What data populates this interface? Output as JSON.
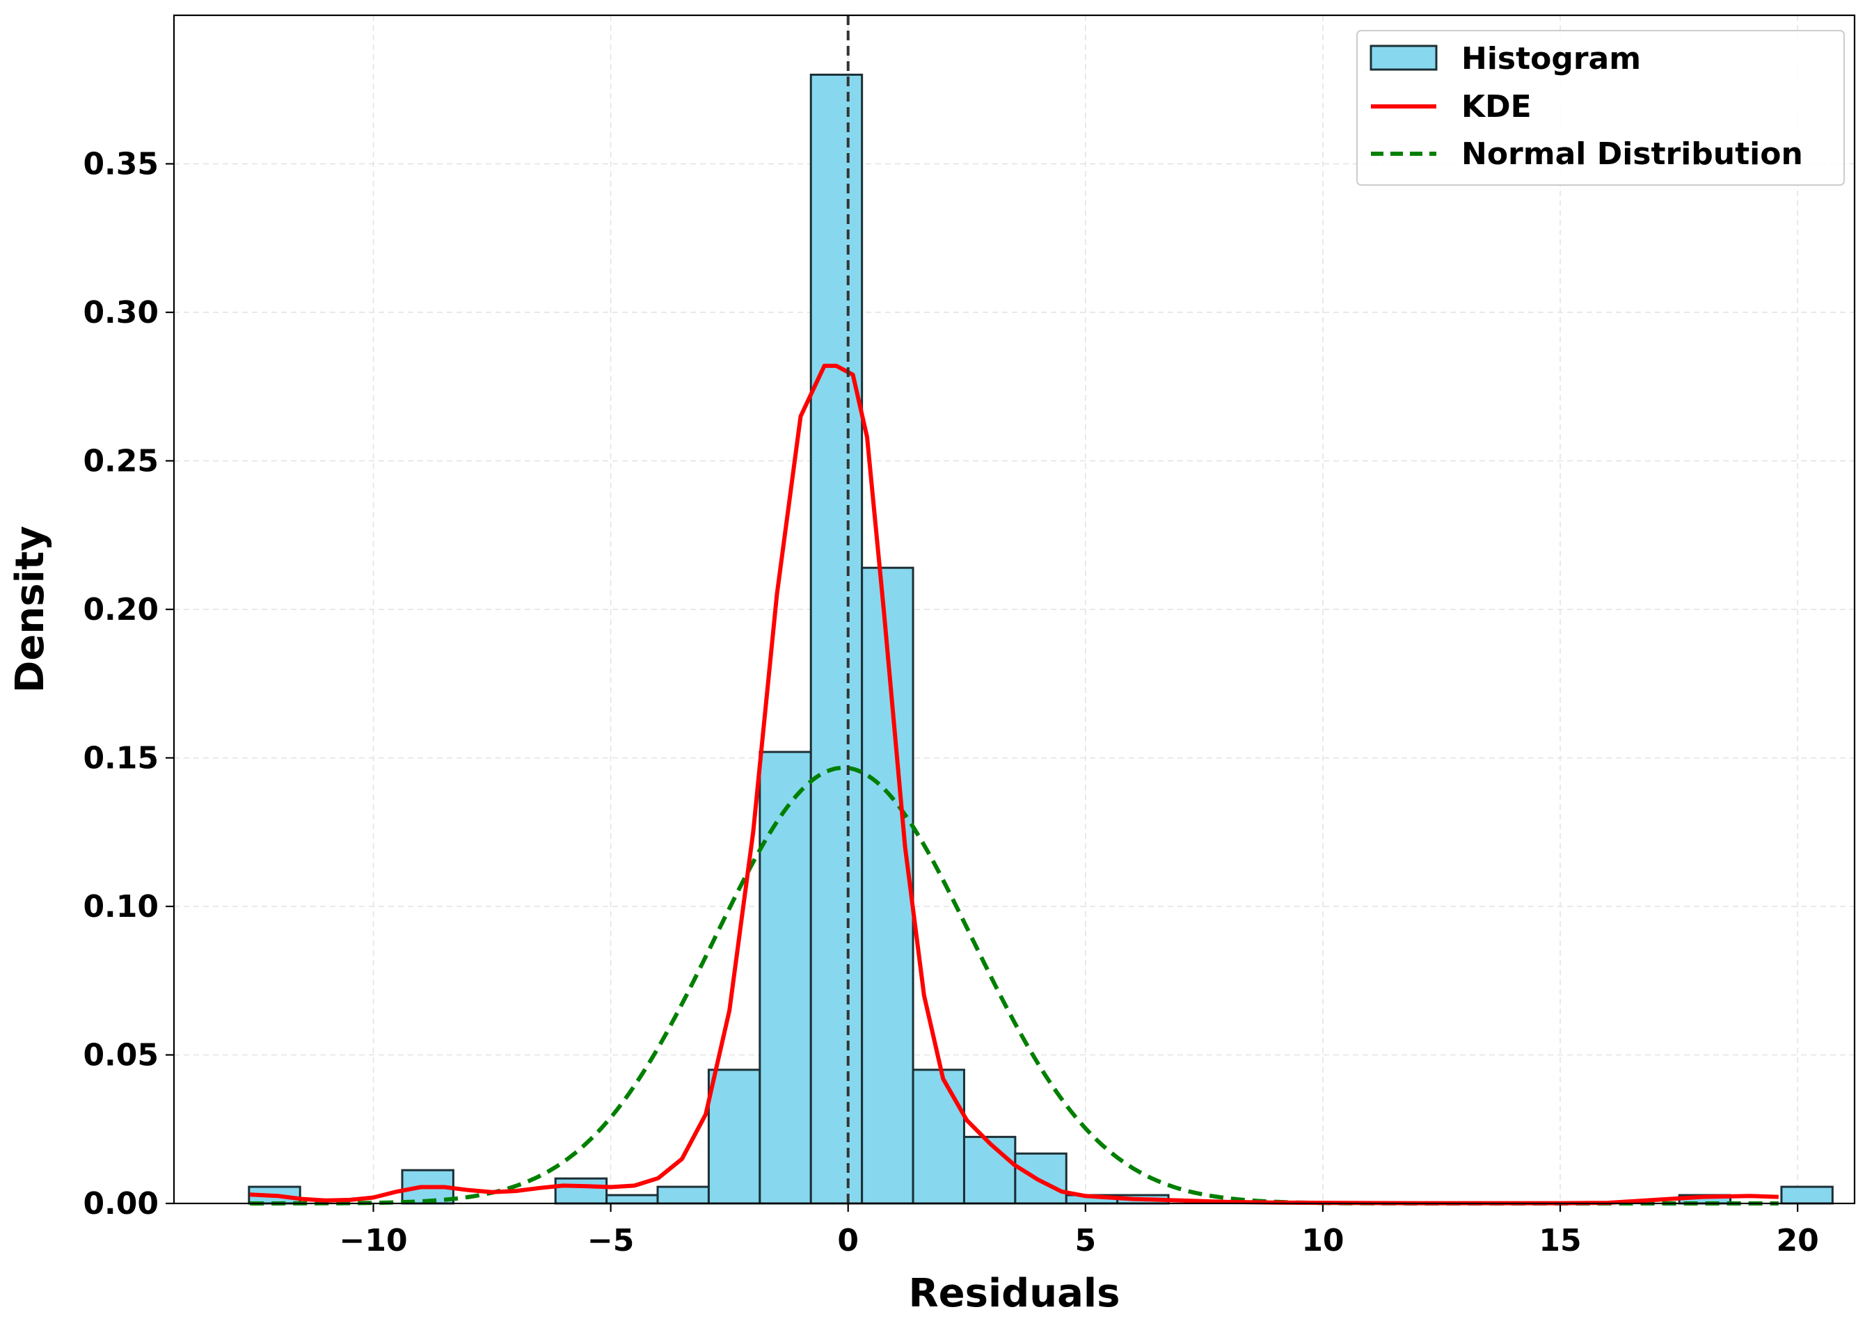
{
  "chart_data": {
    "type": "histogram",
    "xlabel": "Residuals",
    "ylabel": "Density",
    "xlim": [
      -14.2,
      21.2
    ],
    "ylim": [
      0.0,
      0.4
    ],
    "xticks": [
      -10,
      -5,
      0,
      5,
      10,
      15,
      20
    ],
    "xtick_labels": [
      "−10",
      "−5",
      "0",
      "5",
      "10",
      "15",
      "20"
    ],
    "yticks": [
      0.0,
      0.05,
      0.1,
      0.15,
      0.2,
      0.25,
      0.3,
      0.35
    ],
    "ytick_labels": [
      "0.00",
      "0.05",
      "0.10",
      "0.15",
      "0.20",
      "0.25",
      "0.30",
      "0.35"
    ],
    "grid": true,
    "legend_position": "top-right",
    "reference_line": {
      "x": 0,
      "style": "dashed",
      "color": "#333333"
    },
    "histogram": {
      "name": "Histogram",
      "color": "#87d8ee",
      "edge_color": "#1c2f35",
      "bin_start": -12.62,
      "bin_width": 1.076,
      "counts_density": [
        0.0056,
        0,
        0,
        0.0112,
        0,
        0,
        0.0084,
        0.0028,
        0.0056,
        0.045,
        0.152,
        0.38,
        0.214,
        0.045,
        0.0224,
        0.0168,
        0.0028,
        0.0028,
        0,
        0,
        0,
        0,
        0,
        0,
        0,
        0,
        0,
        0,
        0.0028,
        0,
        0.0056
      ]
    },
    "series": [
      {
        "name": "KDE",
        "color": "#ff0000",
        "style": "solid",
        "x": [
          -12.6,
          -12,
          -11.5,
          -11,
          -10.5,
          -10,
          -9.5,
          -9,
          -8.5,
          -8,
          -7.5,
          -7,
          -6.5,
          -6,
          -5.5,
          -5,
          -4.5,
          -4,
          -3.5,
          -3,
          -2.5,
          -2,
          -1.5,
          -1,
          -0.5,
          -0.25,
          0.1,
          0.4,
          0.75,
          1.2,
          1.6,
          2,
          2.5,
          3,
          3.5,
          4,
          4.5,
          5,
          5.5,
          6,
          7,
          8,
          9,
          10,
          12,
          14,
          15,
          16,
          17,
          18,
          19,
          19.6
        ],
        "y": [
          0.003,
          0.0025,
          0.0015,
          0.001,
          0.0012,
          0.002,
          0.004,
          0.0055,
          0.0055,
          0.0045,
          0.0038,
          0.0042,
          0.0052,
          0.006,
          0.0058,
          0.0055,
          0.006,
          0.0085,
          0.015,
          0.03,
          0.065,
          0.125,
          0.205,
          0.265,
          0.282,
          0.282,
          0.279,
          0.258,
          0.2,
          0.12,
          0.07,
          0.042,
          0.028,
          0.02,
          0.013,
          0.008,
          0.004,
          0.0025,
          0.002,
          0.0015,
          0.001,
          0.0005,
          0.0003,
          0.0002,
          0.0001,
          0.0001,
          0.0001,
          0.0002,
          0.0012,
          0.0022,
          0.0025,
          0.0022
        ]
      },
      {
        "name": "Normal Distribution",
        "color": "#007f00",
        "style": "dashed",
        "mean": -0.1,
        "std": 2.72,
        "x_range": [
          -12.6,
          19.6
        ]
      }
    ],
    "legend_entries": [
      "Histogram",
      "KDE",
      "Normal Distribution"
    ]
  }
}
